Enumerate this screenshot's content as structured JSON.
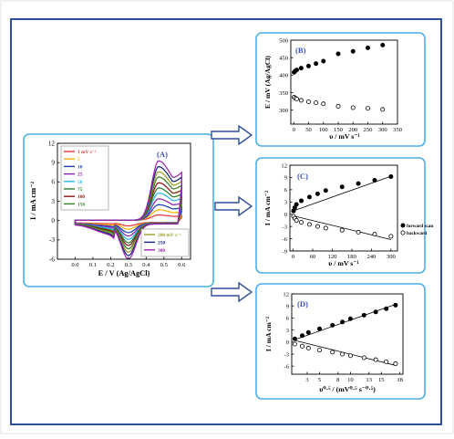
{
  "colors": {
    "frame": "#2f4f9a",
    "panel_border": "#49b1e6",
    "arrow": "#2f4f9a"
  },
  "panel_labels": {
    "a": "(A)",
    "b": "(B)",
    "c": "(C)",
    "d": "(D)"
  },
  "chart_data": [
    {
      "type": "line",
      "panel": "A",
      "xlabel": "E / V (Ag/AgCl)",
      "ylabel": "I / mA cm⁻²",
      "xlim": [
        -0.1,
        0.65
      ],
      "ylim": [
        -6,
        12
      ],
      "xticks": [
        "0.0",
        "0.1",
        "0.2",
        "0.3",
        "0.4",
        "0.5",
        "0.6"
      ],
      "yticks": [
        "12",
        "9",
        "6",
        "3",
        "0",
        "-3",
        "-6"
      ],
      "legend_1": [
        {
          "label": "1 mV s⁻¹",
          "color": "#e53935"
        },
        {
          "label": "5",
          "color": "#ffb300"
        },
        {
          "label": "10",
          "color": "#1e3fb0"
        },
        {
          "label": "25",
          "color": "#8e24aa"
        },
        {
          "label": "50",
          "color": "#29b6f6"
        },
        {
          "label": "75",
          "color": "#2e7d32"
        },
        {
          "label": "100",
          "color": "#8b1a1a"
        },
        {
          "label": "150",
          "color": "#3a7d2c"
        }
      ],
      "legend_2": [
        {
          "label": "200 mV s⁻¹",
          "color": "#9aa026"
        },
        {
          "label": "250",
          "color": "#1a237e"
        },
        {
          "label": "300",
          "color": "#9c27b0"
        }
      ],
      "series": [
        {
          "name": "1 mV s⁻¹",
          "color": "#e53935",
          "ipa": 0.8,
          "ipc": -0.5
        },
        {
          "name": "5",
          "color": "#ffb300",
          "ipa": 1.6,
          "ipc": -1.0
        },
        {
          "name": "10",
          "color": "#1e3fb0",
          "ipa": 2.4,
          "ipc": -1.5
        },
        {
          "name": "25",
          "color": "#8e24aa",
          "ipa": 3.3,
          "ipc": -2.0
        },
        {
          "name": "50",
          "color": "#29b6f6",
          "ipa": 4.2,
          "ipc": -2.5
        },
        {
          "name": "75",
          "color": "#2e7d32",
          "ipa": 5.0,
          "ipc": -3.0
        },
        {
          "name": "100",
          "color": "#8b1a1a",
          "ipa": 5.8,
          "ipc": -3.4
        },
        {
          "name": "150",
          "color": "#3a7d2c",
          "ipa": 6.7,
          "ipc": -3.9
        },
        {
          "name": "200 mV s⁻¹",
          "color": "#9aa026",
          "ipa": 7.5,
          "ipc": -4.4
        },
        {
          "name": "250",
          "color": "#1a237e",
          "ipa": 8.3,
          "ipc": -4.9
        },
        {
          "name": "300",
          "color": "#9c27b0",
          "ipa": 9.2,
          "ipc": -5.4
        }
      ]
    },
    {
      "type": "scatter",
      "panel": "B",
      "xlabel": "υ / mV s⁻¹",
      "ylabel": "E / mV (Ag/AgCl)",
      "xlim": [
        -10,
        350
      ],
      "ylim": [
        260,
        500
      ],
      "xticks": [
        0,
        50,
        100,
        150,
        200,
        250,
        300,
        350
      ],
      "yticks": [
        300,
        350,
        400,
        450,
        500
      ],
      "series": [
        {
          "marker": "filled",
          "x": [
            1,
            5,
            10,
            25,
            50,
            75,
            100,
            150,
            200,
            250,
            300
          ],
          "y": [
            408,
            412,
            415,
            420,
            426,
            433,
            440,
            461,
            468,
            478,
            486
          ]
        },
        {
          "marker": "open",
          "x": [
            1,
            5,
            10,
            25,
            50,
            75,
            100,
            150,
            200,
            250,
            300
          ],
          "y": [
            337,
            334,
            332,
            328,
            324,
            321,
            318,
            311,
            307,
            305,
            302
          ]
        }
      ]
    },
    {
      "type": "scatter",
      "panel": "C",
      "xlabel": "υ / mV s⁻¹",
      "ylabel": "I / mA cm⁻²",
      "xlim": [
        -10,
        320
      ],
      "ylim": [
        -9,
        12
      ],
      "xticks": [
        0,
        60,
        120,
        180,
        240,
        300
      ],
      "yticks": [
        12,
        9,
        6,
        3,
        0,
        -3,
        -6,
        -9
      ],
      "legend": [
        {
          "label": "forward scan",
          "marker": "filled"
        },
        {
          "label": "backward",
          "marker": "open"
        }
      ],
      "series": [
        {
          "name": "forward scan",
          "marker": "filled",
          "x": [
            1,
            5,
            10,
            25,
            50,
            75,
            100,
            150,
            200,
            250,
            300
          ],
          "y": [
            0.8,
            1.6,
            2.4,
            3.3,
            4.2,
            5.0,
            5.8,
            6.7,
            7.5,
            8.3,
            9.2
          ],
          "fit": [
            0.8,
            9.3
          ]
        },
        {
          "name": "backward",
          "marker": "open",
          "x": [
            1,
            5,
            10,
            25,
            50,
            75,
            100,
            150,
            200,
            250,
            300
          ],
          "y": [
            -0.5,
            -1.0,
            -1.5,
            -2.0,
            -2.5,
            -3.0,
            -3.4,
            -3.9,
            -4.4,
            -4.9,
            -5.4
          ],
          "fit": [
            -0.4,
            -6.2
          ]
        }
      ]
    },
    {
      "type": "scatter",
      "panel": "D",
      "xlabel": "υ⁰·⁵ / (mV⁰·⁵ s⁻⁰·⁵)",
      "ylabel": "I / mA cm⁻²",
      "xlim": [
        0.5,
        18.5
      ],
      "ylim": [
        -8,
        12
      ],
      "xticks": [
        3,
        5,
        8,
        10,
        13,
        15,
        18
      ],
      "yticks": [
        12,
        9,
        6,
        3,
        0,
        -3,
        -6
      ],
      "series": [
        {
          "marker": "filled",
          "x": [
            1.0,
            2.2,
            3.2,
            5.0,
            7.1,
            8.7,
            10.0,
            12.2,
            14.1,
            15.8,
            17.3
          ],
          "y": [
            0.8,
            1.6,
            2.4,
            3.3,
            4.2,
            5.0,
            5.8,
            6.7,
            7.5,
            8.3,
            9.2
          ],
          "fit": [
            [
              1.0,
              0.6
            ],
            [
              17.3,
              9.4
            ]
          ]
        },
        {
          "marker": "open",
          "x": [
            1.0,
            2.2,
            3.2,
            5.0,
            7.1,
            8.7,
            10.0,
            12.2,
            14.1,
            15.8,
            17.3
          ],
          "y": [
            -0.5,
            -1.0,
            -1.5,
            -2.0,
            -2.5,
            -3.0,
            -3.4,
            -3.9,
            -4.4,
            -4.9,
            -5.4
          ],
          "fit": [
            [
              1.0,
              0.4
            ],
            [
              17.3,
              -5.8
            ]
          ]
        }
      ]
    }
  ]
}
